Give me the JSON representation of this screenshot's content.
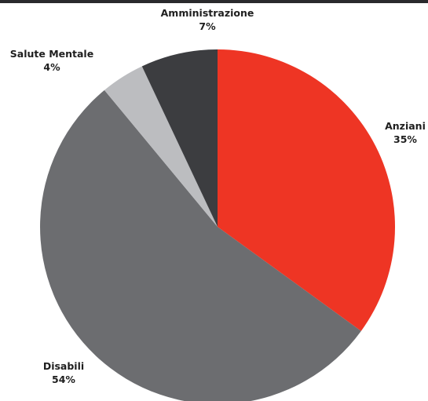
{
  "chart_data": {
    "type": "pie",
    "start_angle_deg": 0,
    "direction": "clockwise",
    "slices": [
      {
        "label": "Anziani",
        "value": 35,
        "value_label": "35%",
        "color": "#ee3524"
      },
      {
        "label": "Disabili",
        "value": 54,
        "value_label": "54%",
        "color": "#6c6d70"
      },
      {
        "label": "Salute Mentale",
        "value": 4,
        "value_label": "4%",
        "color": "#bcbdc0"
      },
      {
        "label": "Amministrazione",
        "value": 7,
        "value_label": "7%",
        "color": "#3c3d40"
      }
    ]
  }
}
